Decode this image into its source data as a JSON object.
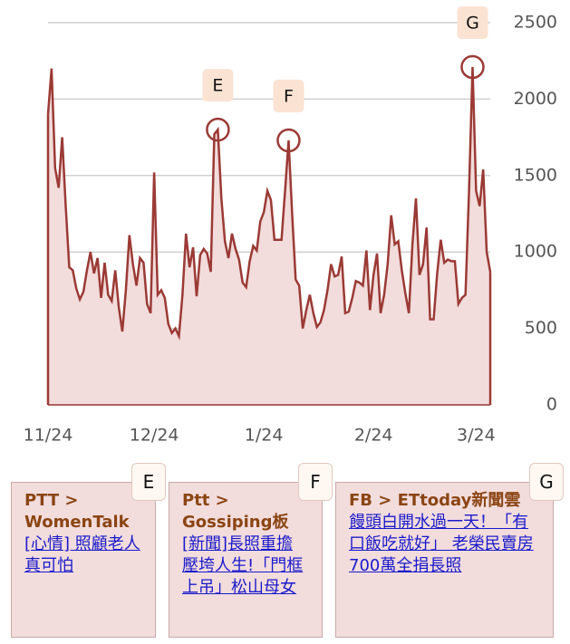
{
  "chart_data": {
    "type": "area",
    "categories": [
      "11/24",
      null,
      null,
      null,
      null,
      null,
      null,
      null,
      null,
      null,
      null,
      null,
      null,
      null,
      null,
      null,
      null,
      null,
      null,
      null,
      null,
      null,
      null,
      null,
      null,
      null,
      null,
      null,
      null,
      null,
      "12/24",
      null,
      null,
      null,
      null,
      null,
      null,
      null,
      null,
      null,
      null,
      null,
      null,
      null,
      null,
      null,
      null,
      null,
      null,
      null,
      null,
      null,
      null,
      null,
      null,
      null,
      null,
      null,
      null,
      null,
      null,
      "1/24",
      null,
      null,
      null,
      null,
      null,
      null,
      null,
      null,
      null,
      null,
      null,
      null,
      null,
      null,
      null,
      null,
      null,
      null,
      null,
      null,
      null,
      null,
      null,
      null,
      null,
      null,
      null,
      null,
      null,
      null,
      "2/24",
      null,
      null,
      null,
      null,
      null,
      null,
      null,
      null,
      null,
      null,
      null,
      null,
      null,
      null,
      null,
      null,
      null,
      null,
      null,
      null,
      null,
      null,
      null,
      null,
      null,
      null,
      null,
      null,
      "3/24",
      null,
      null,
      null,
      null
    ],
    "values": [
      1900,
      2200,
      1550,
      1420,
      1750,
      1300,
      900,
      880,
      760,
      690,
      740,
      880,
      1000,
      860,
      960,
      700,
      930,
      720,
      680,
      880,
      640,
      480,
      750,
      1110,
      920,
      780,
      960,
      930,
      660,
      600,
      1520,
      720,
      750,
      700,
      530,
      470,
      500,
      450,
      720,
      1120,
      900,
      1030,
      710,
      980,
      1020,
      990,
      870,
      1770,
      1800,
      1350,
      1070,
      960,
      1120,
      1020,
      950,
      800,
      770,
      940,
      1040,
      1010,
      1200,
      1260,
      1400,
      1340,
      1080,
      1080,
      1080,
      1400,
      1730,
      1250,
      820,
      780,
      500,
      620,
      720,
      600,
      510,
      540,
      620,
      750,
      920,
      840,
      850,
      970,
      600,
      610,
      700,
      810,
      800,
      780,
      1010,
      620,
      850,
      990,
      600,
      720,
      920,
      1240,
      1050,
      1070,
      880,
      730,
      600,
      1050,
      1350,
      850,
      920,
      1160,
      560,
      560,
      860,
      1080,
      930,
      950,
      940,
      940,
      660,
      700,
      720,
      1400,
      2210,
      1400,
      1300,
      1540,
      1000,
      870
    ],
    "color": "#9b3a35",
    "fill": "#f2dcdc",
    "ylim": [
      0,
      2500
    ],
    "yticks": [
      0,
      500,
      1000,
      1500,
      2000,
      2500
    ],
    "grid": true,
    "annotations": [
      {
        "label": "E",
        "point": 48
      },
      {
        "label": "F",
        "point": 68
      },
      {
        "label": "G",
        "point": 120
      }
    ]
  },
  "cards": [
    {
      "label": "E",
      "source": "PTT > WomenTalk",
      "link": "[心情] 照顧老人真可怕"
    },
    {
      "label": "F",
      "source": "Ptt > Gossiping板",
      "link": "[新聞]長照重擔壓垮人生!「門框上吊」松山母女"
    },
    {
      "label": "G",
      "source": "FB > ETtoday新聞雲",
      "link": "饅頭白開水過一天！「有口飯吃就好」 老榮民賣房700萬全捐長照"
    }
  ]
}
